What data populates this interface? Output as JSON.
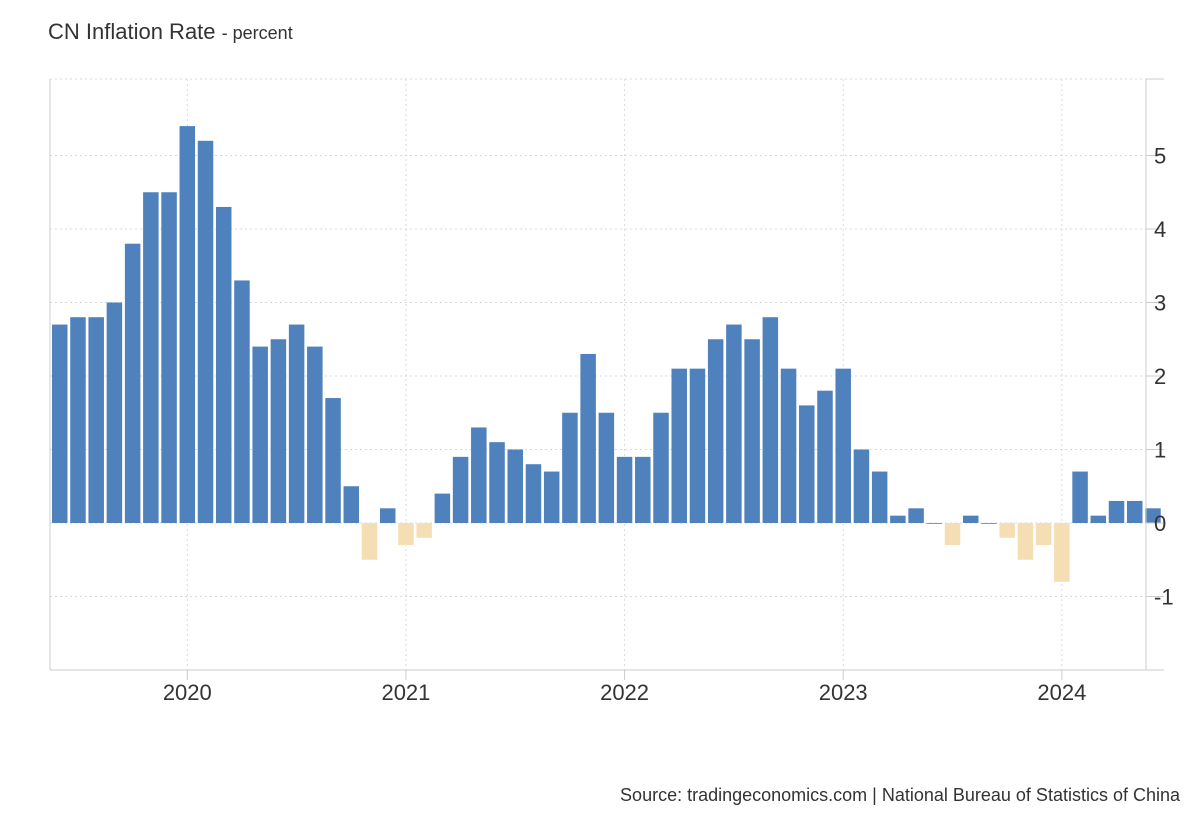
{
  "header": {
    "title": "CN Inflation Rate",
    "subtitle": "- percent"
  },
  "footer": {
    "source": "Source: tradingeconomics.com | National Bureau of Statistics of China"
  },
  "chart_data": {
    "type": "bar",
    "title": "CN Inflation Rate",
    "ylabel": "percent",
    "ylim": [
      -2,
      6
    ],
    "yticks": [
      -1,
      0,
      1,
      2,
      3,
      4,
      5
    ],
    "xticks": [
      "2020",
      "2021",
      "2022",
      "2023",
      "2024"
    ],
    "grid": true,
    "start_month": "2019-06",
    "colors": {
      "positive": "#4f81bd",
      "negative": "#f5deb3"
    },
    "categories": [
      "2019-06",
      "2019-07",
      "2019-08",
      "2019-09",
      "2019-10",
      "2019-11",
      "2019-12",
      "2020-01",
      "2020-02",
      "2020-03",
      "2020-04",
      "2020-05",
      "2020-06",
      "2020-07",
      "2020-08",
      "2020-09",
      "2020-10",
      "2020-11",
      "2020-12",
      "2021-01",
      "2021-02",
      "2021-03",
      "2021-04",
      "2021-05",
      "2021-06",
      "2021-07",
      "2021-08",
      "2021-09",
      "2021-10",
      "2021-11",
      "2021-12",
      "2022-01",
      "2022-02",
      "2022-03",
      "2022-04",
      "2022-05",
      "2022-06",
      "2022-07",
      "2022-08",
      "2022-09",
      "2022-10",
      "2022-11",
      "2022-12",
      "2023-01",
      "2023-02",
      "2023-03",
      "2023-04",
      "2023-05",
      "2023-06",
      "2023-07",
      "2023-08",
      "2023-09",
      "2023-10",
      "2023-11",
      "2023-12",
      "2024-01",
      "2024-02",
      "2024-03",
      "2024-04",
      "2024-05",
      "2024-06"
    ],
    "values": [
      2.7,
      2.8,
      2.8,
      3.0,
      3.8,
      4.5,
      4.5,
      5.4,
      5.2,
      4.3,
      3.3,
      2.4,
      2.5,
      2.7,
      2.4,
      1.7,
      0.5,
      -0.5,
      0.2,
      -0.3,
      -0.2,
      0.4,
      0.9,
      1.3,
      1.1,
      1.0,
      0.8,
      0.7,
      1.5,
      2.3,
      1.5,
      0.9,
      0.9,
      1.5,
      2.1,
      2.1,
      2.5,
      2.7,
      2.5,
      2.8,
      2.1,
      1.6,
      1.8,
      2.1,
      1.0,
      0.7,
      0.1,
      0.2,
      0.0,
      -0.3,
      0.1,
      0.0,
      -0.2,
      -0.5,
      -0.3,
      -0.8,
      0.7,
      0.1,
      0.3,
      0.3,
      0.2
    ]
  }
}
